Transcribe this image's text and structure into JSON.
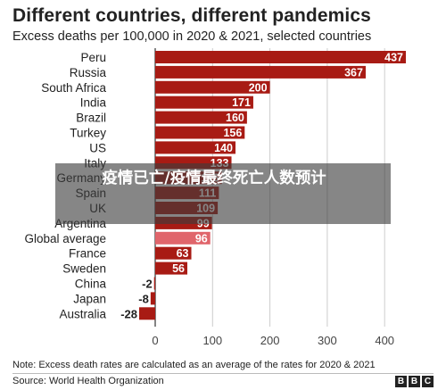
{
  "title": "Different countries, different pandemics",
  "subtitle": "Excess deaths per 100,000 in 2020 & 2021, selected countries",
  "note": "Note: Excess death rates are calculated as an average of the rates for 2020 & 2021",
  "source": "Source: World Health Organization",
  "logo": [
    "B",
    "B",
    "C"
  ],
  "overlay_text": "疫情已亡/疫情最终死亡人数预计",
  "colors": {
    "bar": "#a81b14",
    "bar_highlight": "#e0656b",
    "text": "#222222",
    "grid": "#cccccc"
  },
  "chart_data": {
    "type": "bar",
    "orientation": "horizontal",
    "title": "Different countries, different pandemics",
    "subtitle": "Excess deaths per 100,000 in 2020 & 2021, selected countries",
    "categories": [
      "Peru",
      "Russia",
      "South Africa",
      "India",
      "Brazil",
      "Turkey",
      "US",
      "Italy",
      "Germany",
      "Spain",
      "UK",
      "Argentina",
      "Global average",
      "France",
      "Sweden",
      "China",
      "Japan",
      "Australia"
    ],
    "values": [
      437,
      367,
      200,
      171,
      160,
      156,
      140,
      133,
      116,
      111,
      109,
      99,
      96,
      63,
      56,
      -2,
      -8,
      -28
    ],
    "highlight": "Global average",
    "xlim": [
      -50,
      450
    ],
    "xticks": [
      0,
      100,
      200,
      300,
      400
    ],
    "grid": true
  }
}
